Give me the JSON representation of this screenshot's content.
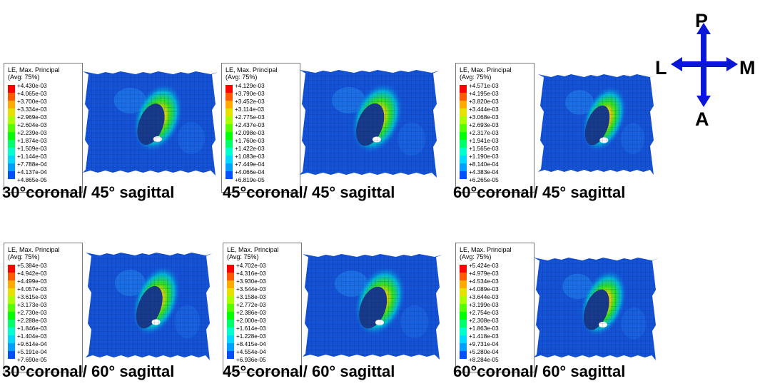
{
  "legend_title": "LE, Max. Principal",
  "legend_subtitle": "(Avg: 75%)",
  "scale_colors": [
    "#ff0000",
    "#ff5a00",
    "#ffaa00",
    "#e8e000",
    "#a8ff00",
    "#55ff00",
    "#00ff00",
    "#00ff6a",
    "#00ffcc",
    "#00d8ff",
    "#00a0ff",
    "#0050ff",
    "#0000ff"
  ],
  "panels": [
    {
      "caption": "30°coronal/ 45° sagittal",
      "values": [
        "+4.430e-03",
        "+4.065e-03",
        "+3.700e-03",
        "+3.334e-03",
        "+2.969e-03",
        "+2.604e-03",
        "+2.239e-03",
        "+1.874e-03",
        "+1.509e-03",
        "+1.144e-03",
        "+7.788e-04",
        "+4.137e-04",
        "+4.865e-05"
      ]
    },
    {
      "caption": "45°coronal/ 45° sagittal",
      "values": [
        "+4.129e-03",
        "+3.790e-03",
        "+3.452e-03",
        "+3.114e-03",
        "+2.775e-03",
        "+2.437e-03",
        "+2.098e-03",
        "+1.760e-03",
        "+1.422e-03",
        "+1.083e-03",
        "+7.449e-04",
        "+4.066e-04",
        "+6.819e-05"
      ]
    },
    {
      "caption": "60°coronal/ 45° sagittal",
      "values": [
        "+4.571e-03",
        "+4.195e-03",
        "+3.820e-03",
        "+3.444e-03",
        "+3.068e-03",
        "+2.693e-03",
        "+2.317e-03",
        "+1.941e-03",
        "+1.565e-03",
        "+1.190e-03",
        "+8.140e-04",
        "+4.383e-04",
        "+6.265e-05"
      ]
    },
    {
      "caption": "30°coronal/ 60° sagittal",
      "values": [
        "+5.384e-03",
        "+4.942e-03",
        "+4.499e-03",
        "+4.057e-03",
        "+3.615e-03",
        "+3.173e-03",
        "+2.730e-03",
        "+2.288e-03",
        "+1.846e-03",
        "+1.404e-03",
        "+9.614e-04",
        "+5.191e-04",
        "+7.690e-05"
      ]
    },
    {
      "caption": "45°coronal/ 60° sagittal",
      "values": [
        "+4.702e-03",
        "+4.316e-03",
        "+3.930e-03",
        "+3.544e-03",
        "+3.158e-03",
        "+2.772e-03",
        "+2.386e-03",
        "+2.000e-03",
        "+1.614e-03",
        "+1.228e-03",
        "+8.415e-04",
        "+4.554e-04",
        "+6.936e-05"
      ]
    },
    {
      "caption": "60°coronal/ 60° sagittal",
      "values": [
        "+5.424e-03",
        "+4.979e-03",
        "+4.534e-03",
        "+4.089e-03",
        "+3.644e-03",
        "+3.199e-03",
        "+2.754e-03",
        "+2.308e-03",
        "+1.863e-03",
        "+1.418e-03",
        "+9.731e-04",
        "+5.280e-04",
        "+8.284e-05"
      ]
    }
  ],
  "compass": {
    "up": "P",
    "down": "A",
    "left": "L",
    "right": "M",
    "arrow_color": "#0a16d8"
  }
}
